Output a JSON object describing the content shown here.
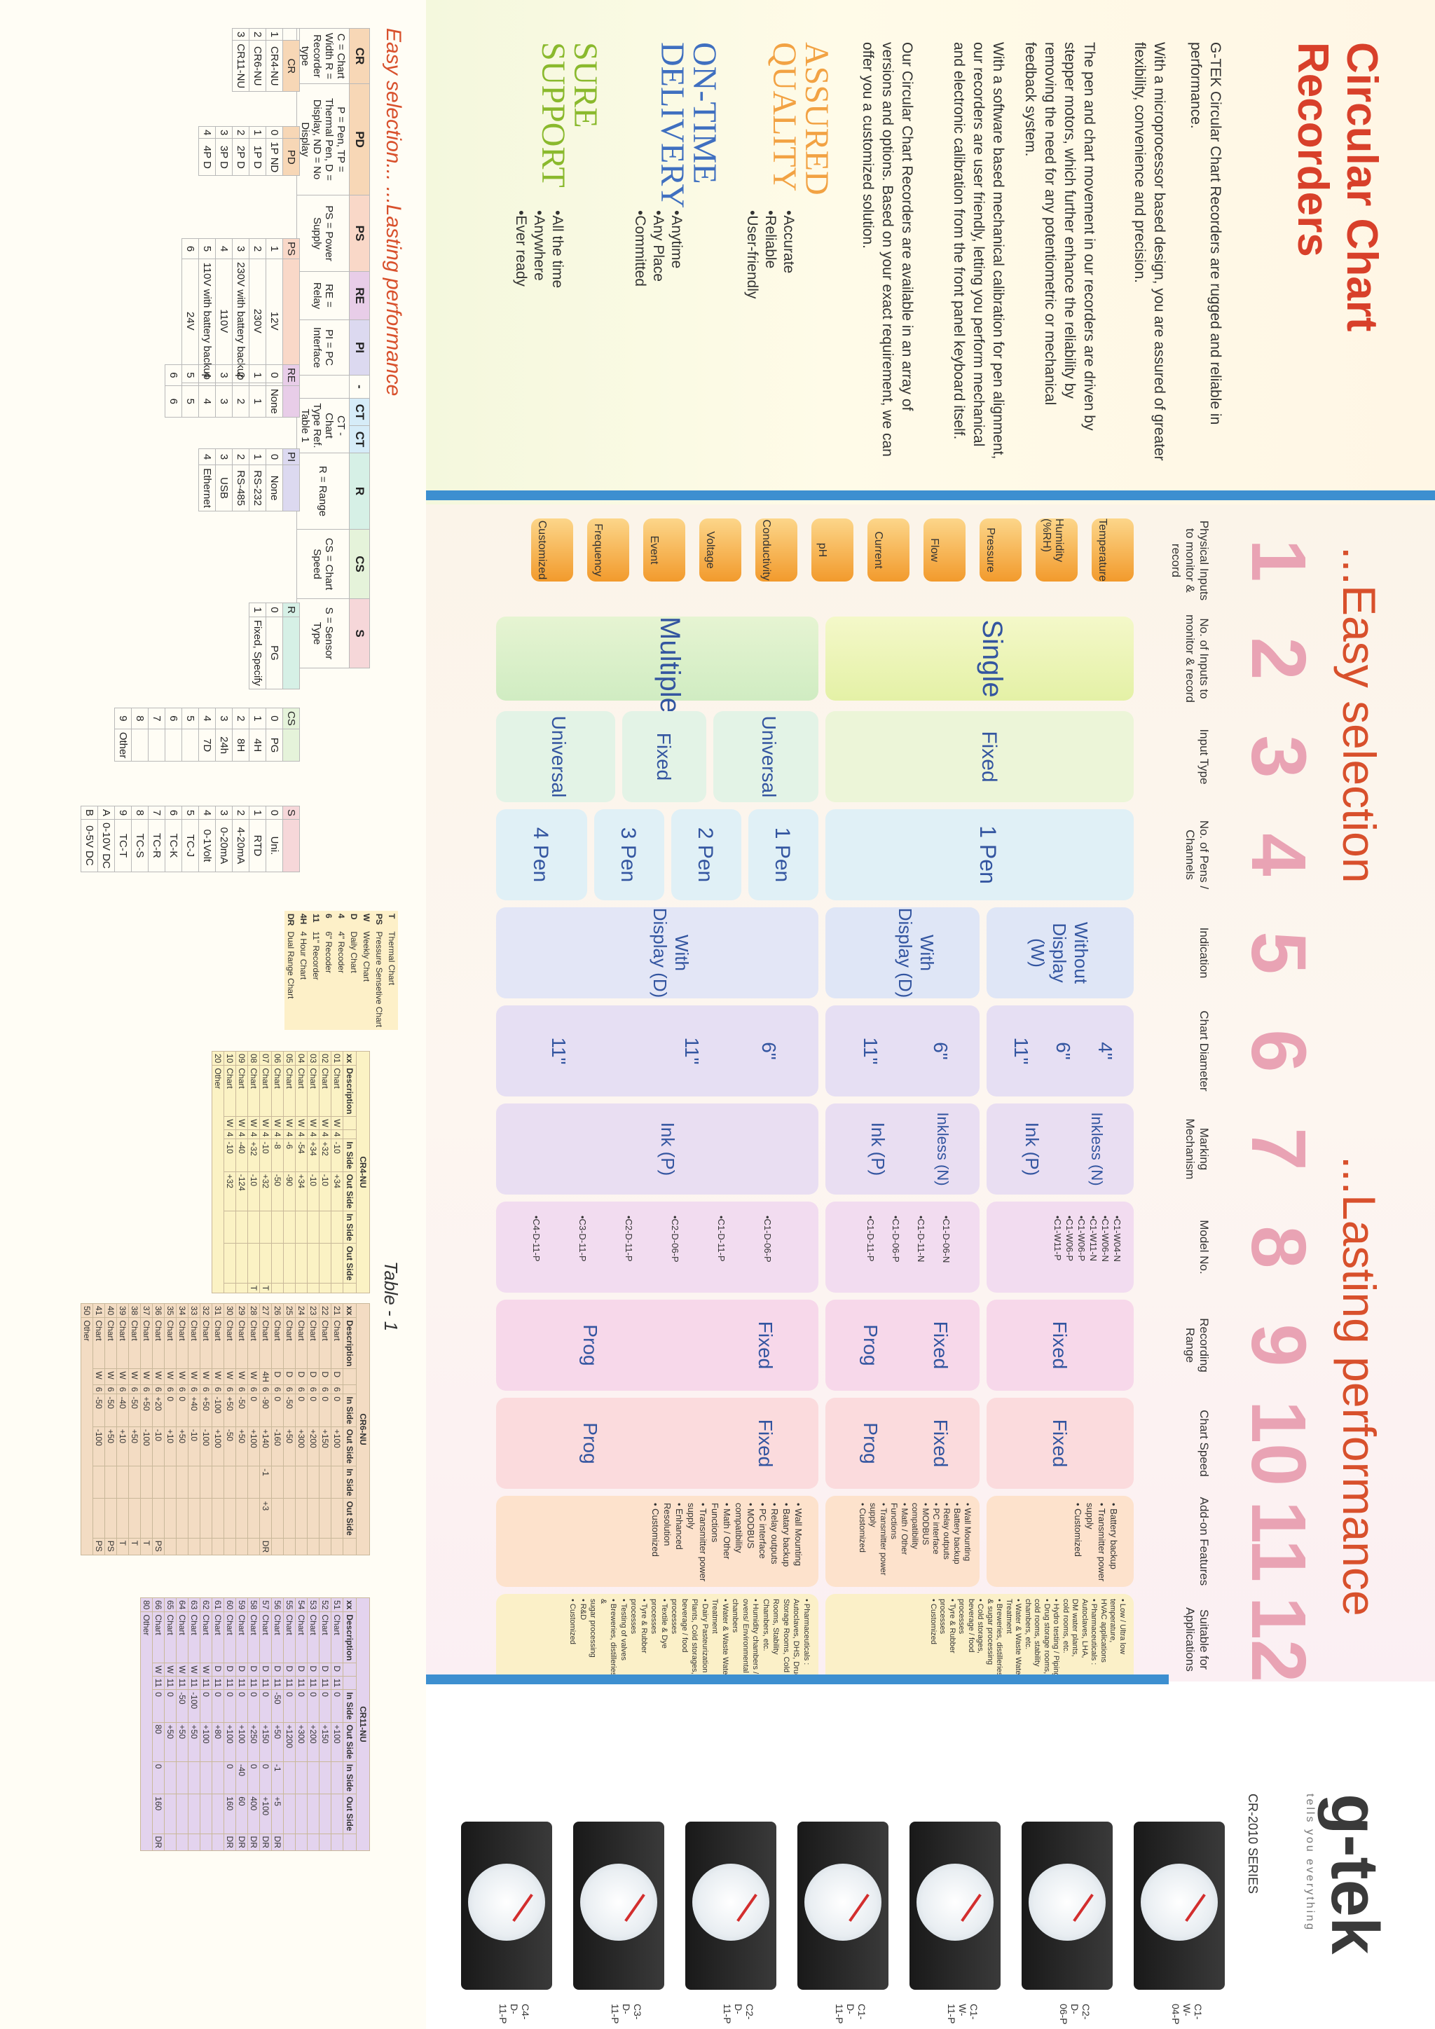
{
  "brand": {
    "name": "g-tek",
    "tagline": "tells you everything",
    "series": "CR-2010 SERIES"
  },
  "product": {
    "title": "Circular Chart Recorders"
  },
  "intro": [
    "G-TEK Circular Chart Recorders are rugged and reliable in performance.",
    "With a microprocessor based design, you are assured of greater flexibility, convenience and precision.",
    "The pen and chart movement in our recorders are driven by stepper motors, which further enhance the reliability by removing the need for any potentiometric or mechanical feedback system.",
    "With a software based mechanical calibration for pen alignment, our recorders are user friendly, letting you perform mechanical and electronic calibration from the front panel keyboard itself.",
    "Our Circular Chart Recorders are available in an array of versions and options. Based on your exact requirement, we can offer you a customized solution."
  ],
  "promises": [
    {
      "title": "ASSURED QUALITY",
      "items": [
        "•Accurate",
        "•Reliable",
        "•User-friendly"
      ],
      "color": "#f2a243"
    },
    {
      "title": "ON-TIME DELIVERY",
      "items": [
        "•Anytime",
        "•Any Place",
        "•Committed"
      ],
      "color": "#3f6fc0"
    },
    {
      "title": "SURE SUPPORT",
      "items": [
        "•All the time",
        "•Anywhere",
        "•Ever ready"
      ],
      "color": "#8ab92d"
    }
  ],
  "headline": {
    "left": "...Easy selection",
    "right": "...Lasting performance"
  },
  "columns": [
    {
      "n": "1",
      "label": "Physical Inputs to monitor & record"
    },
    {
      "n": "2",
      "label": "No. of Inputs to monitor & record"
    },
    {
      "n": "3",
      "label": "Input Type"
    },
    {
      "n": "4",
      "label": "No. of Pens / Channels"
    },
    {
      "n": "5",
      "label": "Indication"
    },
    {
      "n": "6",
      "label": "Chart Diameter"
    },
    {
      "n": "7",
      "label": "Marking Mechanism"
    },
    {
      "n": "8",
      "label": "Model No."
    },
    {
      "n": "9",
      "label": "Recording Range"
    },
    {
      "n": "10",
      "label": "Chart Speed"
    },
    {
      "n": "11",
      "label": "Add-on Features"
    },
    {
      "n": "12",
      "label": "Suitable for Applications"
    }
  ],
  "physical_inputs": [
    "Temperature",
    "Humidity (%RH)",
    "Pressure",
    "Flow",
    "Current",
    "pH",
    "Conductivity",
    "Voltage",
    "Event",
    "Frequency",
    "Customized"
  ],
  "matrix": {
    "single": "Single",
    "multiple": "Multiple",
    "fixed": "Fixed",
    "universal": "Universal",
    "one_pen": "1 Pen",
    "two_pen": "2 Pen",
    "three_pen": "3 Pen",
    "four_pen": "4 Pen",
    "without_display": "Without Display (W)",
    "with_display": "With Display (D)",
    "with_display_2": "With Display (D)",
    "d4": "4\"",
    "d6": "6\"",
    "d11": "11\"",
    "d6b": "6\"",
    "d11b": "11\"",
    "d6c": "6\"",
    "d11c": "11\"",
    "d11d": "11\"",
    "inkless": "Inkless (N)",
    "ink": "Ink (P)",
    "inkless2": "Inkless (N)",
    "ink2": "Ink (P)",
    "ink3": "Ink (P)",
    "models_a": [
      "•C1-W04-N",
      "•C1-W06-N",
      "•C1-W11-N",
      "•C1-W06-P",
      "•C1-W06-P",
      "•C1-W11-P"
    ],
    "models_b": [
      "•C1-D-06-N",
      "•C1-D-11-N",
      "•C1-D-06-P",
      "•C1-D-11-P"
    ],
    "models_c": [
      "•C1-D-06-P",
      "•C1-D-11-P",
      "•C2-D-06-P",
      "•C2-D-11-P",
      "•C3-D-11-P",
      "•C4-D-11-P"
    ],
    "range_fixed": "Fixed",
    "range_fixed2": "Fixed",
    "range_prog": "Prog",
    "range_fixed3": "Fixed",
    "range_prog2": "Prog",
    "speed_fixed": "Fixed",
    "speed_fixed2": "Fixed",
    "speed_prog": "Prog",
    "speed_fixed3": "Fixed",
    "speed_prog2": "Prog",
    "addon_a": [
      "• Battery backup",
      "• Transmitter power supply",
      "• Customized"
    ],
    "addon_b": [
      "• Wall Mounting",
      "• Battery backup",
      "• Relay outputs",
      "• PC interface",
      "• MODBUS compatibility",
      "• Math / Other Functions",
      "• Transmitter power supply",
      "• Customized"
    ],
    "addon_c": [
      "• Wall Mounting",
      "• Batary backup",
      "• Relay outputs",
      "• PC interface",
      "• MODBUS compatibility",
      "• Math / Other Functions",
      "• Transmitter power supply",
      "• Enhanced Resolution",
      "• Customized"
    ],
    "apps_a": [
      "• Low / Ultra low temperature,",
      "HVAC applications",
      "• Pharmaceuticals :",
      "Autoclaves, LHA,",
      "DM water plants,",
      "cold rooms, etc.",
      "• Hydro testing / Piping",
      "• Drug storage rooms,",
      "cold rooms, stability",
      "chambers, etc.",
      "• Water & Waste Water",
      "Treatment",
      "• Breweries, distilleries",
      "& sugar processing",
      "• Cold storages,",
      "beverage / food processes",
      "• Tyre & Rubber processes",
      "• Customized"
    ],
    "apps_b": [
      "• Pharmaceuticals :",
      "Autoclaves, DHS, Drug",
      "Storage Rooms, Cold",
      "Rooms, Stability",
      "Chambers, etc.",
      "• Humidity chambers /",
      "ovens/ Environmental",
      "chambers",
      "• Water & Waste Water",
      "Treatment",
      "• Dairy Pasteurization",
      "Plants, Cold storages,",
      "beverage / food",
      "processes",
      "• Textile & Dye processes",
      "• Tyre & Rubber processes",
      "• Testing of valves",
      "• Breweries, distilleries &",
      "sugar processing",
      "• R&D",
      "• Customized"
    ]
  },
  "products": [
    {
      "model": "C1-W-04-P"
    },
    {
      "model": "C2-D-06-P"
    },
    {
      "model": "C1-W-11-P"
    },
    {
      "model": "C1-D-11-P"
    },
    {
      "model": "C2-D-11-P"
    },
    {
      "model": "C3-D-11-P"
    },
    {
      "model": "C4-D-11-P"
    }
  ],
  "ordering": {
    "title_a": "Easy selection...",
    "title_b": "...Lasting performance",
    "header": [
      "CR",
      "PD",
      "PS",
      "RE",
      "PI",
      "-",
      "CT",
      "CT",
      "R",
      "CS",
      "S"
    ],
    "descriptions": [
      "C = Chart Width R = Recorder type",
      "P = Pen, TP = Thermal Pen, D = Display, ND = No Display",
      "PS = Power Supply",
      "RE = Relay",
      "PI = PC Interface",
      "",
      "CT - Chart Type Ref. Table 1",
      "",
      "R = Range",
      "CS = Chart Speed",
      "S = Sensor Type"
    ],
    "cr_rows": [
      [
        "",
        "CR",
        ""
      ],
      [
        "1",
        "CR4-NU",
        "0"
      ],
      [
        "2",
        "CR6-NU",
        "1"
      ],
      [
        "3",
        "CR11-NU",
        "2"
      ],
      [
        "",
        "",
        "3"
      ],
      [
        "",
        "",
        "4"
      ]
    ],
    "pd_rows": [
      "PD",
      "1P ND",
      "1P D",
      "2P D",
      "3P D",
      "4P D"
    ],
    "ps_rows": [
      [
        "PS",
        ""
      ],
      [
        "1",
        "12V"
      ],
      [
        "2",
        "230V"
      ],
      [
        "3",
        "230V with battery backup"
      ],
      [
        "4",
        "110V"
      ],
      [
        "5",
        "110V with battery backup"
      ],
      [
        "6",
        "24V"
      ]
    ],
    "re_rows": [
      [
        "RE",
        ""
      ],
      [
        "0",
        "None"
      ],
      [
        "1",
        "1"
      ],
      [
        "2",
        "2"
      ],
      [
        "3",
        "3"
      ],
      [
        "4",
        "4"
      ],
      [
        "5",
        "5"
      ],
      [
        "6",
        "6"
      ]
    ],
    "pi_rows": [
      [
        "PI",
        ""
      ],
      [
        "0",
        "None"
      ],
      [
        "1",
        "RS-232"
      ],
      [
        "2",
        "RS-485"
      ],
      [
        "3",
        "USB"
      ],
      [
        "4",
        "Ethernet"
      ]
    ],
    "r_rows": [
      [
        "R",
        ""
      ],
      [
        "0",
        "PG"
      ],
      [
        "1",
        "Fixed, Specify"
      ]
    ],
    "cs_rows": [
      [
        "CS",
        ""
      ],
      [
        "0",
        "PG"
      ],
      [
        "1",
        "4H"
      ],
      [
        "2",
        "8H"
      ],
      [
        "3",
        "24h"
      ],
      [
        "4",
        "7D"
      ],
      [
        "5",
        ""
      ],
      [
        "6",
        ""
      ],
      [
        "7",
        ""
      ],
      [
        "8",
        ""
      ],
      [
        "9",
        "Other"
      ]
    ],
    "s_rows": [
      [
        "S",
        ""
      ],
      [
        "0",
        "Uni."
      ],
      [
        "1",
        "RTD"
      ],
      [
        "2",
        "4-20mA"
      ],
      [
        "3",
        "0-20mA"
      ],
      [
        "4",
        "0-1Volt"
      ],
      [
        "5",
        "TC-J"
      ],
      [
        "6",
        "TC-K"
      ],
      [
        "7",
        "TC-R"
      ],
      [
        "8",
        "TC-S"
      ],
      [
        "9",
        "TC-T"
      ],
      [
        "A",
        "0-10V DC"
      ],
      [
        "B",
        "0-5V DC"
      ]
    ]
  },
  "legend": [
    {
      "code": "T",
      "text": "Thermal Chart"
    },
    {
      "code": "PS",
      "text": "Pressure Sensetive Chart"
    },
    {
      "code": "W",
      "text": "Weekly Chart"
    },
    {
      "code": "D",
      "text": "Daily Chart"
    },
    {
      "code": "4",
      "text": "4\" Recoder"
    },
    {
      "code": "6",
      "text": "6\" Recoder"
    },
    {
      "code": "11",
      "text": "11\" Recorder"
    },
    {
      "code": "4H",
      "text": "4 Hour Chart"
    },
    {
      "code": "DR",
      "text": "Dual Range Chart"
    }
  ],
  "table1": {
    "title": "Table - 1",
    "cols": [
      "xx",
      "Description",
      "",
      "",
      "In Side",
      "Out Side",
      "In Side",
      "Out Side",
      ""
    ],
    "cr4": {
      "name": "CR4-NU",
      "rows": [
        [
          "01",
          "Chart",
          "W",
          "4",
          "-10",
          "+34",
          "",
          "",
          ""
        ],
        [
          "02",
          "Chart",
          "W",
          "4",
          "+32",
          "-10",
          "",
          "",
          ""
        ],
        [
          "03",
          "Chart",
          "W",
          "4",
          "+34",
          "-10",
          "",
          "",
          ""
        ],
        [
          "04",
          "Chart",
          "W",
          "4",
          "-54",
          "+34",
          "",
          "",
          ""
        ],
        [
          "05",
          "Chart",
          "W",
          "4",
          "-6",
          "-90",
          "",
          "",
          ""
        ],
        [
          "06",
          "Chart",
          "W",
          "4",
          "-8",
          "-50",
          "",
          "",
          ""
        ],
        [
          "07",
          "Chart",
          "W",
          "4",
          "-10",
          "+32",
          "",
          "",
          "T"
        ],
        [
          "08",
          "Chart",
          "W",
          "4",
          "+32",
          "-10",
          "",
          "",
          "T"
        ],
        [
          "09",
          "Chart",
          "W",
          "4",
          "-40",
          "-124",
          "",
          "",
          ""
        ],
        [
          "10",
          "Chart",
          "W",
          "4",
          "-10",
          "+32",
          "",
          "",
          ""
        ]
      ],
      "other": [
        "20",
        "Other"
      ]
    },
    "cr6": {
      "name": "CR6-NU",
      "rows": [
        [
          "21",
          "Chart",
          "D",
          "6",
          "0",
          "+100",
          "",
          "",
          ""
        ],
        [
          "22",
          "Chart",
          "D",
          "6",
          "0",
          "+150",
          "",
          "",
          ""
        ],
        [
          "23",
          "Chart",
          "D",
          "6",
          "0",
          "+200",
          "",
          "",
          ""
        ],
        [
          "24",
          "Chart",
          "D",
          "6",
          "0",
          "+300",
          "",
          "",
          ""
        ],
        [
          "25",
          "Chart",
          "D",
          "6",
          "-50",
          "+50",
          "",
          "",
          ""
        ],
        [
          "26",
          "Chart",
          "D",
          "6",
          "0",
          "-160",
          "",
          "",
          ""
        ],
        [
          "27",
          "Chart",
          "4H",
          "6",
          "-90",
          "+140",
          "-1",
          "+3",
          "DR"
        ],
        [
          "28",
          "Chart",
          "W",
          "6",
          "0",
          "+100",
          "",
          "",
          ""
        ],
        [
          "29",
          "Chart",
          "W",
          "6",
          "-50",
          "+50",
          "",
          "",
          ""
        ],
        [
          "30",
          "Chart",
          "W",
          "6",
          "+50",
          "-50",
          "",
          "",
          ""
        ],
        [
          "31",
          "Chart",
          "W",
          "6",
          "-100",
          "+100",
          "",
          "",
          ""
        ],
        [
          "32",
          "Chart",
          "W",
          "6",
          "+50",
          "-100",
          "",
          "",
          ""
        ],
        [
          "33",
          "Chart",
          "W",
          "6",
          "+40",
          "-10",
          "",
          "",
          ""
        ],
        [
          "34",
          "Chart",
          "W",
          "6",
          "0",
          "+50",
          "",
          "",
          ""
        ],
        [
          "35",
          "Chart",
          "W",
          "6",
          "0",
          "+10",
          "",
          "",
          ""
        ],
        [
          "36",
          "Chart",
          "W",
          "6",
          "+20",
          "-10",
          "",
          "",
          "PS"
        ],
        [
          "37",
          "Chart",
          "W",
          "6",
          "+50",
          "-100",
          "",
          "",
          "T"
        ],
        [
          "38",
          "Chart",
          "W",
          "6",
          "-50",
          "+50",
          "",
          "",
          "T"
        ],
        [
          "39",
          "Chart",
          "W",
          "6",
          "-40",
          "+10",
          "",
          "",
          "T"
        ],
        [
          "40",
          "Chart",
          "W",
          "6",
          "-50",
          "+50",
          "",
          "",
          "PS"
        ],
        [
          "41",
          "Chart",
          "W",
          "6",
          "-50",
          "-100",
          "",
          "",
          "PS"
        ]
      ],
      "other": [
        "50",
        "Other"
      ]
    },
    "cr11": {
      "name": "CR11-NU",
      "rows": [
        [
          "51",
          "Chart",
          "D",
          "11",
          "0",
          "+100",
          "",
          "",
          ""
        ],
        [
          "52",
          "Chart",
          "D",
          "11",
          "0",
          "+150",
          "",
          "",
          ""
        ],
        [
          "53",
          "Chart",
          "D",
          "11",
          "0",
          "+200",
          "",
          "",
          ""
        ],
        [
          "54",
          "Chart",
          "D",
          "11",
          "0",
          "+300",
          "",
          "",
          ""
        ],
        [
          "55",
          "Chart",
          "D",
          "11",
          "0",
          "+1200",
          "",
          "",
          ""
        ],
        [
          "56",
          "Chart",
          "D",
          "11",
          "-50",
          "+50",
          "-1",
          "+5",
          "DR"
        ],
        [
          "57",
          "Chart",
          "D",
          "11",
          "0",
          "+150",
          "0",
          "+100",
          "DR"
        ],
        [
          "58",
          "Chart",
          "D",
          "11",
          "0",
          "+250",
          "0",
          "400",
          "DR"
        ],
        [
          "59",
          "Chart",
          "D",
          "11",
          "0",
          "+100",
          "-40",
          "60",
          "DR"
        ],
        [
          "60",
          "Chart",
          "D",
          "11",
          "0",
          "+100",
          "0",
          "160",
          "DR"
        ],
        [
          "61",
          "Chart",
          "D",
          "11",
          "0",
          "+80",
          "",
          "",
          ""
        ],
        [
          "62",
          "Chart",
          "W",
          "11",
          "0",
          "+100",
          "",
          "",
          ""
        ],
        [
          "63",
          "Chart",
          "W",
          "11",
          "-100",
          "+50",
          "",
          "",
          ""
        ],
        [
          "64",
          "Chart",
          "W",
          "11",
          "-50",
          "+50",
          "",
          "",
          ""
        ],
        [
          "65",
          "Chart",
          "W",
          "11",
          "0",
          "+50",
          "",
          "",
          ""
        ],
        [
          "66",
          "Chart",
          "W",
          "11",
          "0",
          "80",
          "0",
          "160",
          "DR"
        ]
      ],
      "other": [
        "80",
        "Other"
      ]
    }
  },
  "colors": {
    "accent": "#d8402a",
    "blue_bar": "#3d8fd0",
    "pink": "#e9a3b4"
  }
}
